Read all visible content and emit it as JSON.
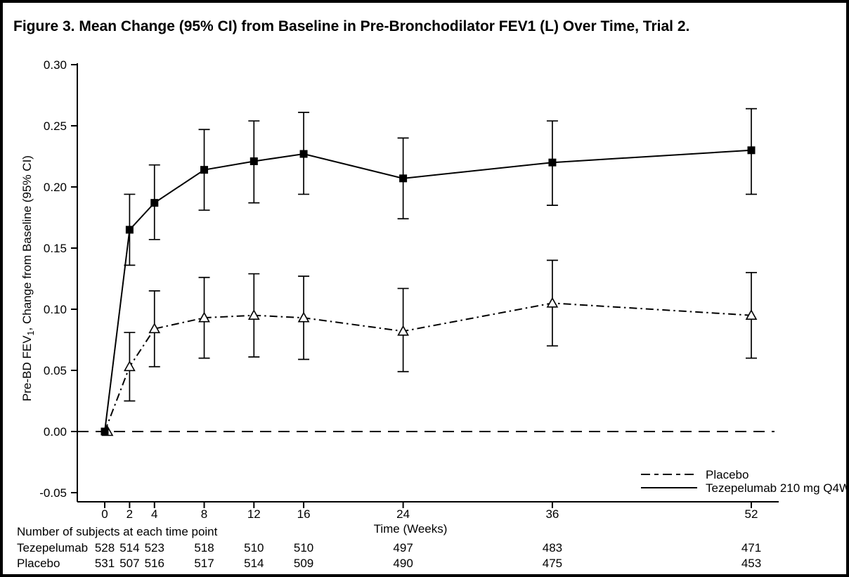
{
  "title": "Figure 3. Mean Change (95% CI) from Baseline in Pre-Bronchodilator FEV1 (L) Over Time, Trial 2.",
  "colors": {
    "line": "#000000",
    "background": "#ffffff",
    "border": "#000000"
  },
  "chart_data": {
    "type": "line",
    "x": [
      0,
      2,
      4,
      8,
      12,
      16,
      24,
      36,
      52
    ],
    "xlabel": "Time (Weeks)",
    "ylabel": "Pre-BD FEV1, Change from Baseline (95% CI)",
    "ylabel_parts": {
      "pre": "Pre-BD FEV",
      "sub": "1",
      "post": ", Change from Baseline (95% CI)"
    },
    "ylim": [
      -0.05,
      0.3
    ],
    "yticks": [
      0.3,
      0.25,
      0.2,
      0.15,
      0.1,
      0.05,
      0.0,
      -0.05
    ],
    "grid": false,
    "zero_reference_line": 0.0,
    "legend_position": "bottom-right",
    "series": [
      {
        "name": "Placebo",
        "marker": "triangle-open",
        "line_style": "dash-dot",
        "values": [
          0.0,
          0.053,
          0.084,
          0.093,
          0.095,
          0.093,
          0.082,
          0.105,
          0.095
        ],
        "ci_low": [
          0.0,
          0.025,
          0.053,
          0.06,
          0.061,
          0.059,
          0.049,
          0.07,
          0.06
        ],
        "ci_high": [
          0.0,
          0.081,
          0.115,
          0.126,
          0.129,
          0.127,
          0.117,
          0.14,
          0.13
        ]
      },
      {
        "name": "Tezepelumab 210 mg Q4W",
        "marker": "square-filled",
        "line_style": "solid",
        "values": [
          0.0,
          0.165,
          0.187,
          0.214,
          0.221,
          0.227,
          0.207,
          0.22,
          0.23
        ],
        "ci_low": [
          0.0,
          0.136,
          0.157,
          0.181,
          0.187,
          0.194,
          0.174,
          0.185,
          0.194
        ],
        "ci_high": [
          0.0,
          0.194,
          0.218,
          0.247,
          0.254,
          0.261,
          0.24,
          0.254,
          0.264
        ]
      }
    ]
  },
  "subjects_table": {
    "caption": "Number of subjects at each time point",
    "rows": [
      {
        "label": "Tezepelumab",
        "counts": [
          528,
          514,
          523,
          518,
          510,
          510,
          497,
          483,
          471
        ]
      },
      {
        "label": "Placebo",
        "counts": [
          531,
          507,
          516,
          517,
          514,
          509,
          490,
          475,
          453
        ]
      }
    ]
  }
}
